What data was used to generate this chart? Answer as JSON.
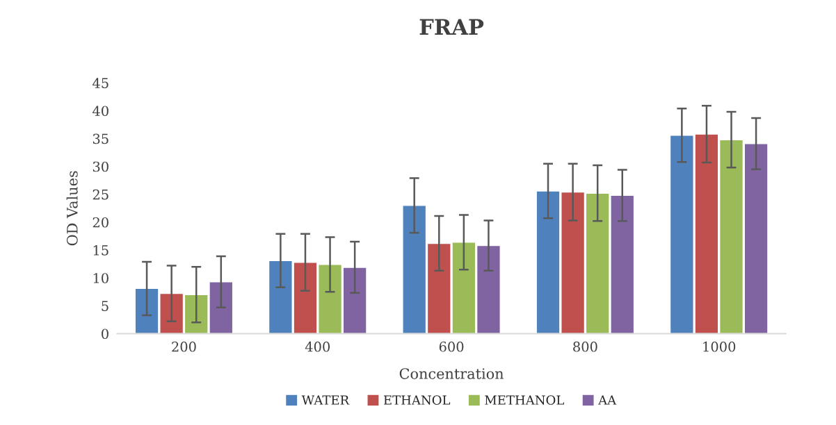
{
  "chart_data": {
    "type": "bar",
    "title": "FRAP",
    "xlabel": "Concentration",
    "ylabel": "OD Values",
    "categories": [
      "200",
      "400",
      "600",
      "800",
      "1000"
    ],
    "series": [
      {
        "name": "WATER",
        "color": "#4f81bd",
        "values": [
          8.1,
          13.1,
          23.0,
          25.6,
          35.6
        ],
        "errors": [
          4.8,
          4.8,
          4.9,
          4.9,
          4.8
        ]
      },
      {
        "name": "ETHANOL",
        "color": "#c0504d",
        "values": [
          7.2,
          12.8,
          16.2,
          25.4,
          35.8
        ],
        "errors": [
          5.0,
          5.1,
          4.9,
          5.1,
          5.1
        ]
      },
      {
        "name": "METHANOL",
        "color": "#9bbb59",
        "values": [
          7.0,
          12.4,
          16.4,
          25.2,
          34.8
        ],
        "errors": [
          5.0,
          4.9,
          4.9,
          5.0,
          5.0
        ]
      },
      {
        "name": "AA",
        "color": "#8064a2",
        "values": [
          9.3,
          11.9,
          15.8,
          24.8,
          34.1
        ],
        "errors": [
          4.6,
          4.6,
          4.5,
          4.6,
          4.6
        ]
      }
    ],
    "ylim": [
      0,
      45
    ],
    "yticks": [
      0,
      5,
      10,
      15,
      20,
      25,
      30,
      35,
      40,
      45
    ],
    "grid": false,
    "legend": "bottom"
  }
}
